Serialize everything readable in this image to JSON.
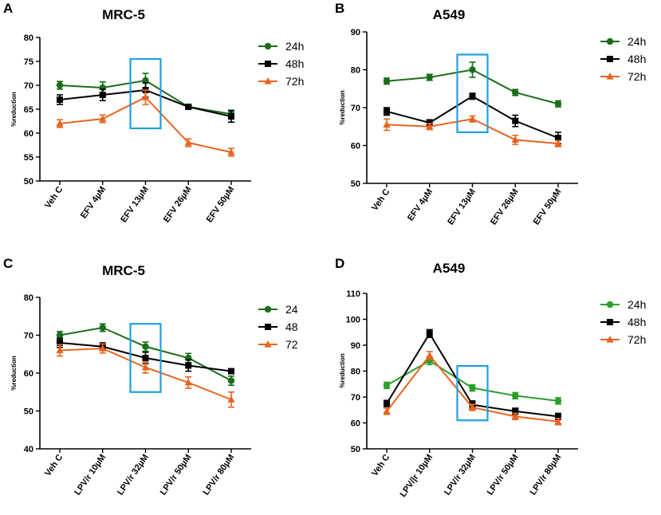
{
  "figure": {
    "colors": {
      "h24": "#1a6e1a",
      "h24_light": "#2aa02a",
      "h48": "#000000",
      "h72": "#e8641e",
      "highlight": "#1ea0e0"
    },
    "series_names": [
      "24h",
      "48h",
      "72h"
    ],
    "series_markers": [
      "circle",
      "square",
      "triangle"
    ]
  },
  "chart_data": [
    {
      "type": "line",
      "panel": "A",
      "title": "MRC-5",
      "ylabel": "%reduction",
      "xlabel": "",
      "categories": [
        "Veh C",
        "EFV 4µM",
        "EFV 13µM",
        "EFV 26µM",
        "EFV 50µM"
      ],
      "ylim": [
        50,
        80
      ],
      "yticks": [
        50,
        55,
        60,
        65,
        70,
        75,
        80
      ],
      "highlight_index": 2,
      "highlight_range": [
        61,
        75.5
      ],
      "legend": [
        "24h",
        "48h",
        "72h"
      ],
      "series": [
        {
          "name": "24h",
          "values": [
            70,
            69.5,
            71,
            65.5,
            64
          ],
          "errors": [
            0.8,
            1.2,
            1.5,
            0.4,
            0.8
          ]
        },
        {
          "name": "48h",
          "values": [
            67,
            68,
            69,
            65.5,
            63.5
          ],
          "errors": [
            1.0,
            1.2,
            1.5,
            0.4,
            1.2
          ]
        },
        {
          "name": "72h",
          "values": [
            62,
            63,
            67.5,
            58,
            56
          ],
          "errors": [
            0.8,
            0.8,
            1.5,
            0.8,
            0.8
          ]
        }
      ]
    },
    {
      "type": "line",
      "panel": "B",
      "title": "A549",
      "ylabel": "%reduction",
      "xlabel": "",
      "categories": [
        "Veh C",
        "EFV 4µM",
        "EFV 13µM",
        "EFV 26µM",
        "EFV 50µM"
      ],
      "ylim": [
        50,
        90
      ],
      "yticks": [
        50,
        60,
        70,
        80,
        90
      ],
      "highlight_index": 2,
      "highlight_range": [
        63.5,
        84
      ],
      "legend": [
        "24h",
        "48h",
        "72h"
      ],
      "series": [
        {
          "name": "24h",
          "values": [
            77,
            78,
            80,
            74,
            71
          ],
          "errors": [
            0.8,
            0.8,
            2.0,
            0.8,
            0.8
          ]
        },
        {
          "name": "48h",
          "values": [
            69,
            66,
            73,
            66.5,
            62
          ],
          "errors": [
            1.0,
            0.8,
            0.8,
            1.5,
            1.5
          ]
        },
        {
          "name": "72h",
          "values": [
            65.5,
            65,
            67,
            61.5,
            60.5
          ],
          "errors": [
            1.5,
            0.8,
            0.8,
            1.2,
            0.8
          ]
        }
      ]
    },
    {
      "type": "line",
      "panel": "C",
      "title": "MRC-5",
      "ylabel": "%reduction",
      "xlabel": "",
      "categories": [
        "Veh C",
        "LPV/r 10µM",
        "LPV/r 32µM",
        "LPV/r 50µM",
        "LPV/r 80µM"
      ],
      "ylim": [
        40,
        80
      ],
      "yticks": [
        40,
        50,
        60,
        70,
        80
      ],
      "highlight_index": 2,
      "highlight_range": [
        55,
        73
      ],
      "legend": [
        "24",
        "48",
        "72"
      ],
      "series": [
        {
          "name": "24h",
          "values": [
            70,
            72,
            67,
            64,
            58
          ],
          "errors": [
            1.0,
            1.0,
            1.2,
            1.2,
            1.2
          ]
        },
        {
          "name": "48h",
          "values": [
            68,
            67,
            64,
            62,
            60.5
          ],
          "errors": [
            1.2,
            1.0,
            1.5,
            1.5,
            0.6
          ]
        },
        {
          "name": "72h",
          "values": [
            66,
            66.5,
            61.5,
            57.5,
            53
          ],
          "errors": [
            1.5,
            1.2,
            1.5,
            1.5,
            2.0
          ]
        }
      ]
    },
    {
      "type": "line",
      "panel": "D",
      "title": "A549",
      "ylabel": "%reduction",
      "xlabel": "",
      "categories": [
        "Veh C",
        "LPV/|r 10µM",
        "LPV/r 32µM",
        "LPV/r 50µM",
        "LPV/r 80µM"
      ],
      "ylim": [
        50,
        110
      ],
      "yticks": [
        50,
        60,
        70,
        80,
        90,
        100,
        110
      ],
      "highlight_index": 2,
      "highlight_range": [
        61,
        82
      ],
      "legend": [
        "24h",
        "48h",
        "72h"
      ],
      "series": [
        {
          "name": "24h",
          "values": [
            74.5,
            84,
            73.5,
            70.5,
            68.5
          ],
          "errors": [
            1.2,
            1.5,
            1.2,
            1.2,
            1.2
          ]
        },
        {
          "name": "48h",
          "values": [
            67.5,
            94.5,
            67,
            64.5,
            62.5
          ],
          "errors": [
            1.2,
            1.5,
            1.5,
            1.2,
            1.2
          ]
        },
        {
          "name": "72h",
          "values": [
            64.5,
            86,
            66,
            62.5,
            60.5
          ],
          "errors": [
            1.2,
            1.5,
            1.2,
            1.2,
            1.2
          ]
        }
      ]
    }
  ]
}
